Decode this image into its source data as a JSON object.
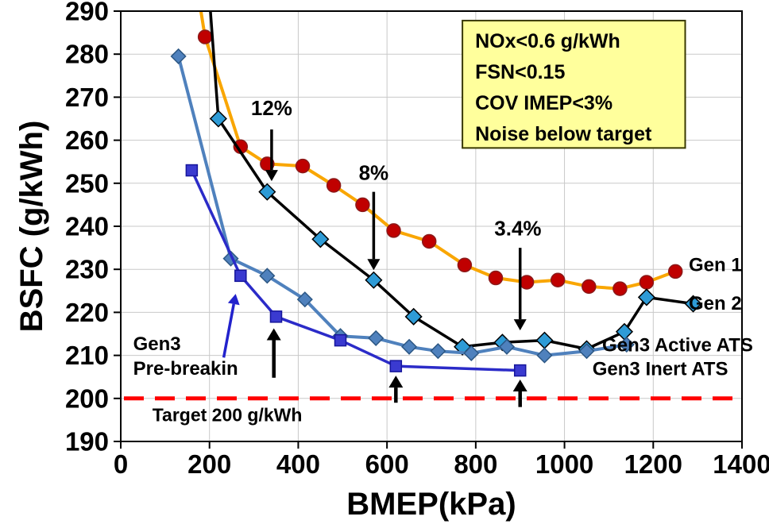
{
  "chart_data": {
    "type": "line",
    "xlabel": "BMEP(kPa)",
    "ylabel": "BSFC (g/kWh)",
    "xlim": [
      0,
      1400
    ],
    "ylim": [
      190,
      290
    ],
    "xticks": [
      0,
      200,
      400,
      600,
      800,
      1000,
      1200,
      1400
    ],
    "yticks": [
      190,
      200,
      210,
      220,
      230,
      240,
      250,
      260,
      270,
      280,
      290
    ],
    "grid": true,
    "grid_color": "#c9c9c9",
    "series": [
      {
        "name": "Gen 1",
        "marker": "circle",
        "line_color": "#F9A602",
        "line_width": 4,
        "marker_fill": "#C00000",
        "marker_edge": "#8B1A1A",
        "marker_size": 8.5,
        "lead_in": [
          165,
          300
        ],
        "points": [
          [
            190,
            284
          ],
          [
            270,
            258.5
          ],
          [
            330,
            254.5
          ],
          [
            410,
            254
          ],
          [
            480,
            249.5
          ],
          [
            545,
            245
          ],
          [
            615,
            239
          ],
          [
            695,
            236.5
          ],
          [
            775,
            231
          ],
          [
            845,
            228
          ],
          [
            915,
            227
          ],
          [
            985,
            227.5
          ],
          [
            1055,
            226
          ],
          [
            1125,
            225.5
          ],
          [
            1185,
            227
          ],
          [
            1250,
            229.5
          ]
        ]
      },
      {
        "name": "Gen 2",
        "marker": "diamond",
        "line_color": "#000000",
        "line_width": 3.5,
        "marker_fill": "#2E9BD6",
        "marker_edge": "#000000",
        "marker_size": 10,
        "lead_in": [
          195,
          300
        ],
        "points": [
          [
            220,
            265
          ],
          [
            330,
            248
          ],
          [
            450,
            237
          ],
          [
            570,
            227.5
          ],
          [
            660,
            219
          ],
          [
            770,
            212
          ],
          [
            860,
            213
          ],
          [
            955,
            213.5
          ],
          [
            1050,
            211.5
          ],
          [
            1135,
            215.5
          ],
          [
            1185,
            223.5
          ],
          [
            1290,
            222
          ]
        ]
      },
      {
        "name": "Gen3 Active ATS",
        "marker": "diamond",
        "line_color": "#4F81BD",
        "line_width": 4,
        "marker_fill": "#4F81BD",
        "marker_edge": "#2C5784",
        "marker_size": 9,
        "points": [
          [
            130,
            279.5
          ],
          [
            248,
            232.5
          ],
          [
            330,
            228.5
          ],
          [
            415,
            223
          ],
          [
            495,
            214.5
          ],
          [
            575,
            214
          ],
          [
            650,
            212
          ],
          [
            715,
            211
          ],
          [
            790,
            210.5
          ],
          [
            870,
            212
          ],
          [
            955,
            210
          ],
          [
            1050,
            211
          ],
          [
            1140,
            212.5
          ]
        ]
      },
      {
        "name": "Gen3 Inert ATS",
        "marker": "square",
        "line_color": "#2B2BC8",
        "line_width": 3.5,
        "marker_fill": "#3A3AD0",
        "marker_edge": "#16169B",
        "marker_size": 7,
        "points": [
          [
            160,
            253
          ],
          [
            270,
            228.5
          ],
          [
            350,
            219
          ],
          [
            495,
            213.5
          ],
          [
            620,
            207.5
          ],
          [
            900,
            206.5
          ]
        ]
      }
    ],
    "annotations": {
      "info_box": {
        "x1": 770,
        "x2": 1272,
        "y_top": 287.8,
        "y_bottom": 258.2,
        "fill": "#FFFF9C",
        "border": "#3a3a00",
        "lines": [
          "NOx<0.6 g/kWh",
          "FSN<0.15",
          "COV IMEP<3%",
          "Noise below target"
        ]
      },
      "target": {
        "y": 200,
        "color": "#FF0000",
        "label": "Target 200 g/kWh",
        "label_x": 240,
        "label_y": 196.2
      },
      "percent_callouts": [
        {
          "text": "12%",
          "text_x": 340,
          "text_y": 267.5,
          "arrow": [
            340,
            262.5,
            340,
            250.5
          ]
        },
        {
          "text": "8%",
          "text_x": 570,
          "text_y": 252.5,
          "arrow": [
            570,
            248,
            570,
            229.8
          ]
        },
        {
          "text": "3.4%",
          "text_x": 895,
          "text_y": 239.5,
          "arrow": [
            900,
            235,
            900,
            215.8
          ]
        }
      ],
      "up_arrows": [
        [
          345,
          204.8,
          345,
          216.3
        ],
        [
          620,
          199.0,
          620,
          205.3
        ],
        [
          900,
          198.0,
          900,
          204.4
        ]
      ],
      "breakin_label": {
        "color": "#2222CC",
        "lines": [
          {
            "text": "Gen3",
            "x": 28,
            "y": 212.6
          },
          {
            "text": "Pre-breakin",
            "x": 28,
            "y": 206.9
          }
        ],
        "arrow": [
          232,
          209.5,
          259,
          224.3
        ]
      },
      "series_labels": [
        {
          "text": "Gen 1",
          "x": 1280,
          "y": 231,
          "color": "#000000"
        },
        {
          "text": "Gen 2",
          "x": 1280,
          "y": 222,
          "color": "#000000"
        },
        {
          "text": "Gen3 Active ATS",
          "x": 1085,
          "y": 212.3,
          "color": "#2222CC"
        },
        {
          "text": "Gen3 Inert ATS",
          "x": 1063,
          "y": 206.8,
          "color": "#2222CC"
        }
      ]
    }
  }
}
